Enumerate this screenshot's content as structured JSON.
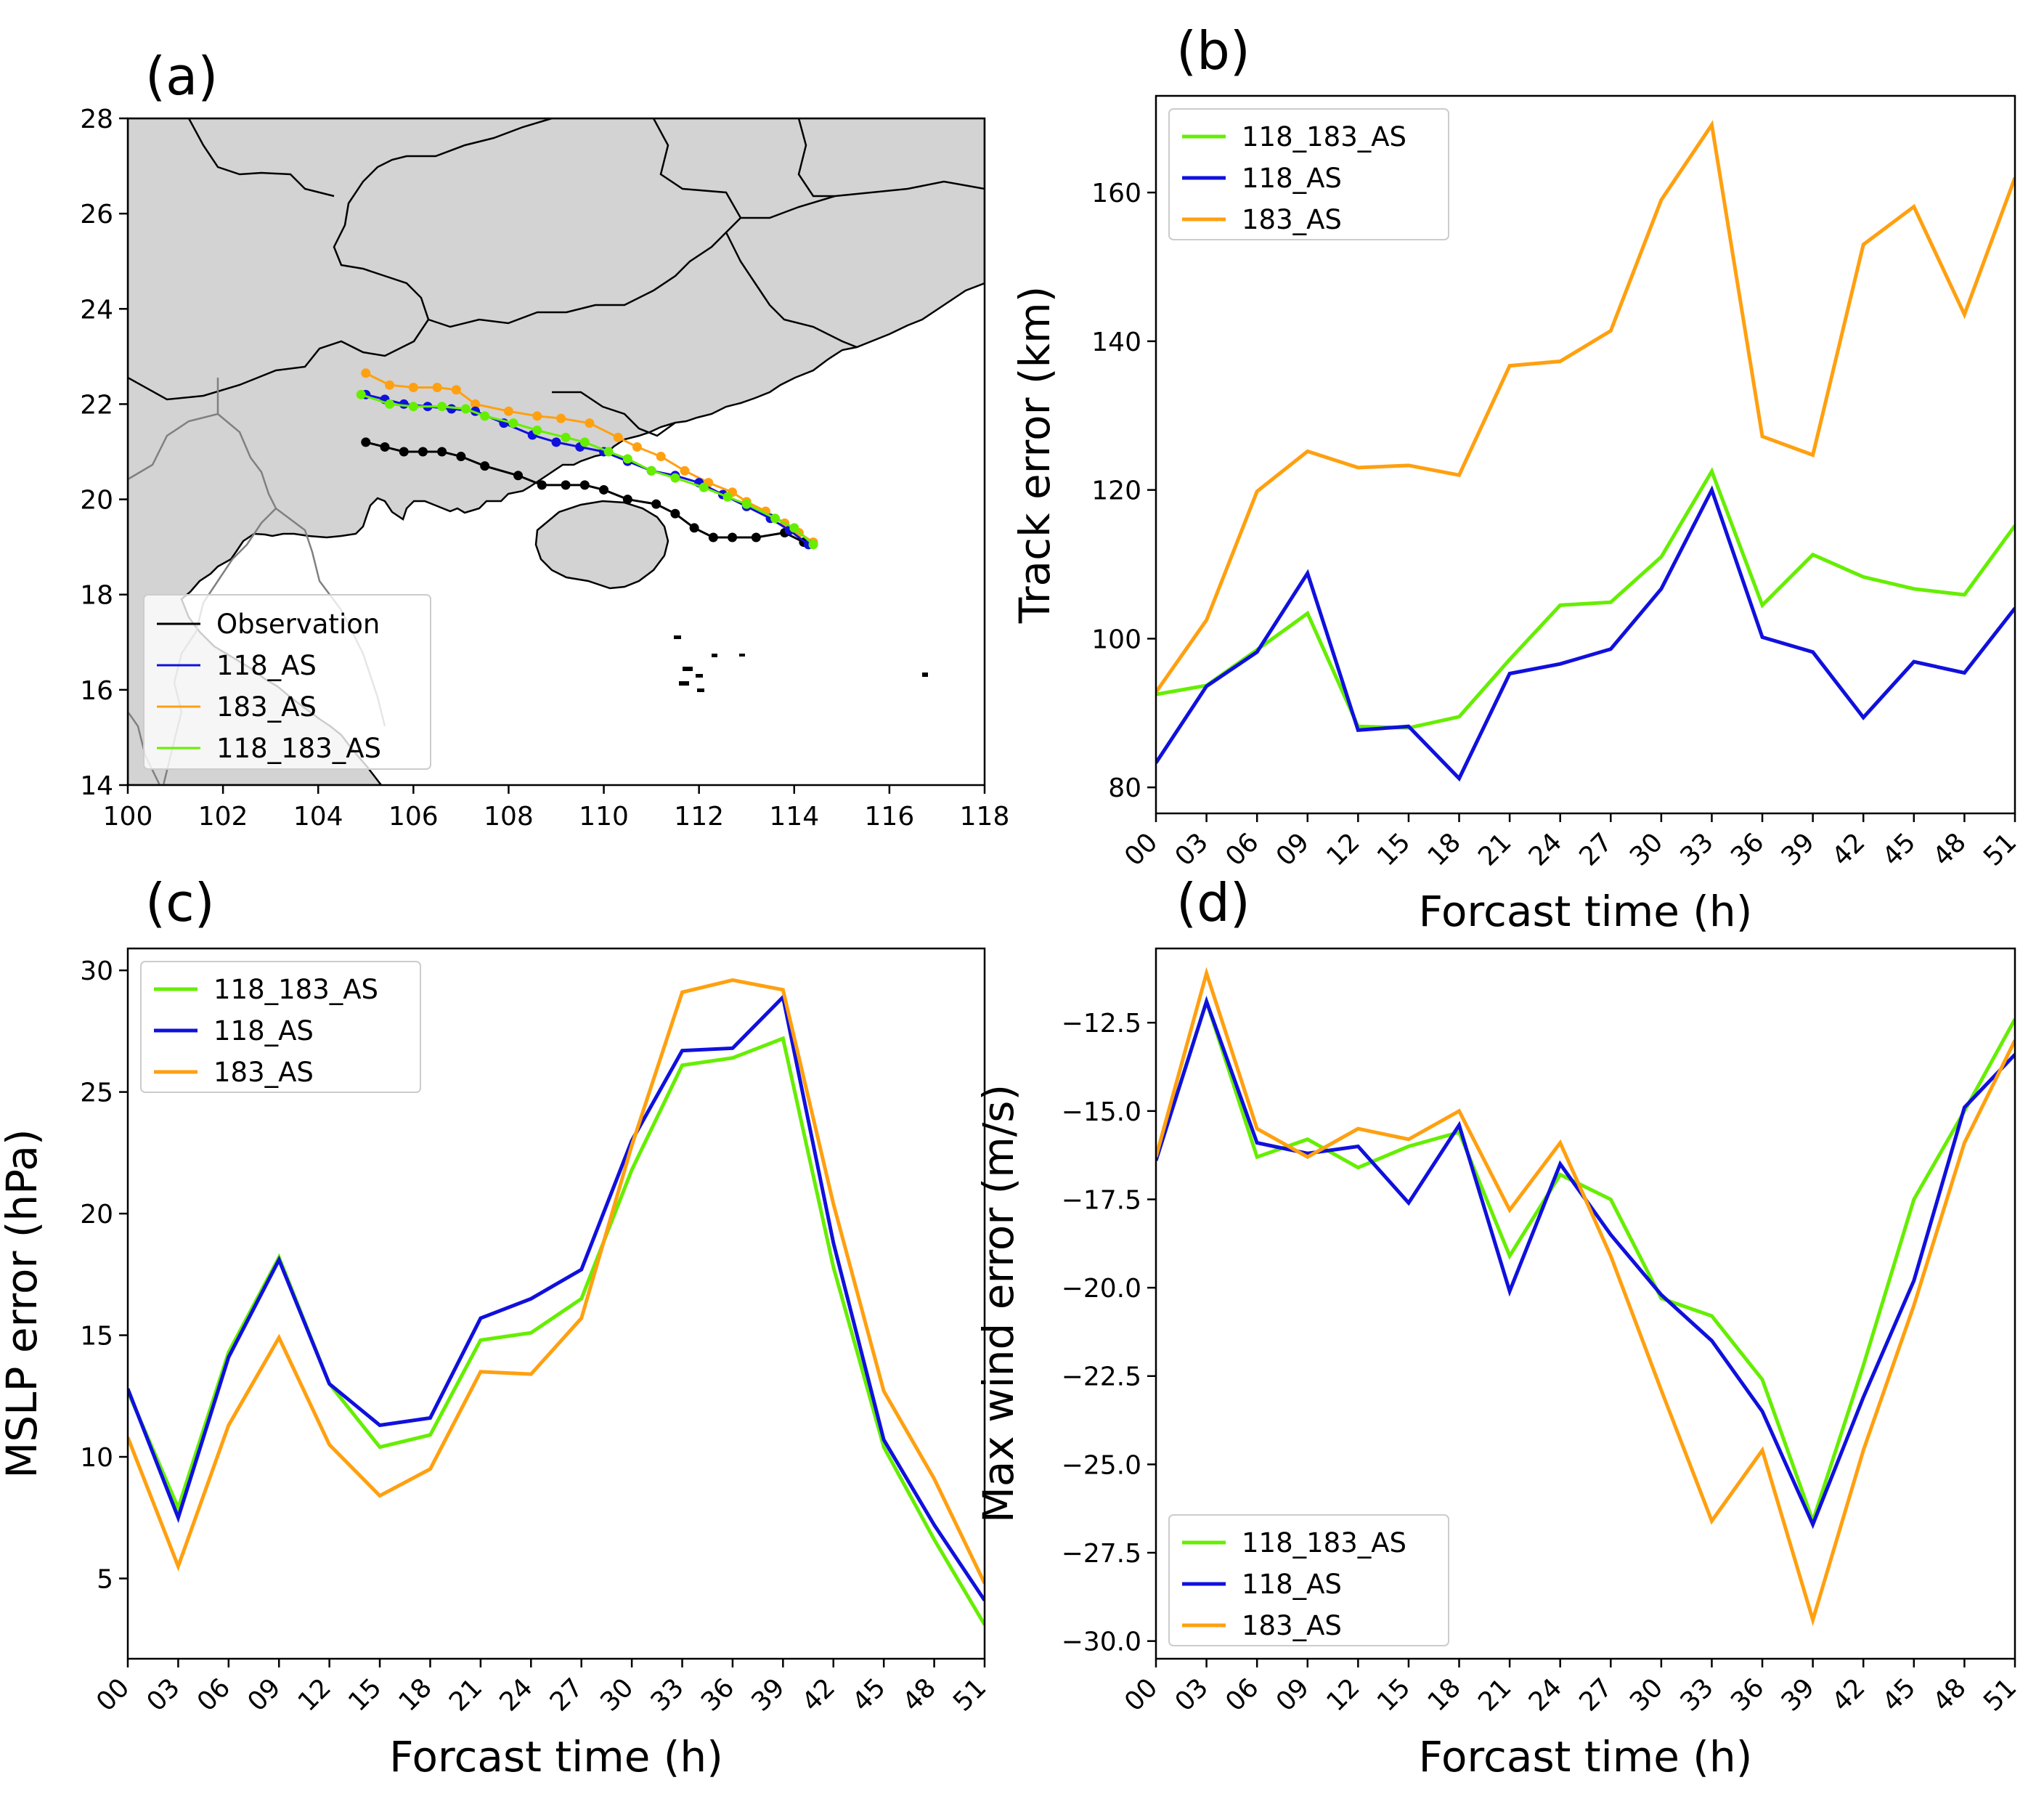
{
  "figure": {
    "panel_labels": [
      "(a)",
      "(b)",
      "(c)",
      "(d)"
    ]
  },
  "colors": {
    "118_183_AS": "#66ee00",
    "118_AS": "#1010dd",
    "183_AS": "#ffa010",
    "Observation": "#000000",
    "land": "#d3d3d3",
    "ocean": "#ffffff",
    "border_black": "#000000",
    "border_gray": "#808080"
  },
  "chart_data": [
    {
      "panel": "(a)",
      "type": "scatter",
      "x_ticks": [
        100,
        102,
        104,
        106,
        108,
        110,
        112,
        114,
        116,
        118
      ],
      "y_ticks": [
        14,
        16,
        18,
        20,
        22,
        24,
        26,
        28
      ],
      "xlim": [
        100,
        118
      ],
      "ylim": [
        14,
        28
      ],
      "legend_position": "lower-left",
      "legend": [
        "Observation",
        "118_AS",
        "183_AS",
        "118_183_AS"
      ],
      "series": [
        {
          "name": "Observation",
          "color": "#000000",
          "points": [
            [
              105.0,
              21.2
            ],
            [
              105.4,
              21.1
            ],
            [
              105.8,
              21.0
            ],
            [
              106.2,
              21.0
            ],
            [
              106.6,
              21.0
            ],
            [
              107.0,
              20.9
            ],
            [
              107.5,
              20.7
            ],
            [
              108.2,
              20.5
            ],
            [
              108.7,
              20.3
            ],
            [
              109.2,
              20.3
            ],
            [
              109.6,
              20.3
            ],
            [
              110.0,
              20.2
            ],
            [
              110.5,
              20.0
            ],
            [
              111.1,
              19.9
            ],
            [
              111.5,
              19.7
            ],
            [
              111.9,
              19.4
            ],
            [
              112.3,
              19.2
            ],
            [
              112.7,
              19.2
            ],
            [
              113.2,
              19.2
            ],
            [
              113.8,
              19.3
            ],
            [
              114.2,
              19.1
            ]
          ]
        },
        {
          "name": "183_AS",
          "color": "#ffa010",
          "points": [
            [
              105.0,
              22.65
            ],
            [
              105.5,
              22.4
            ],
            [
              106.0,
              22.35
            ],
            [
              106.5,
              22.35
            ],
            [
              106.9,
              22.3
            ],
            [
              107.3,
              22.0
            ],
            [
              108.0,
              21.85
            ],
            [
              108.6,
              21.75
            ],
            [
              109.1,
              21.7
            ],
            [
              109.7,
              21.6
            ],
            [
              110.3,
              21.3
            ],
            [
              110.7,
              21.1
            ],
            [
              111.2,
              20.9
            ],
            [
              111.7,
              20.6
            ],
            [
              112.2,
              20.35
            ],
            [
              112.7,
              20.15
            ],
            [
              113.0,
              19.95
            ],
            [
              113.4,
              19.75
            ],
            [
              113.8,
              19.5
            ],
            [
              114.1,
              19.3
            ],
            [
              114.4,
              19.1
            ]
          ]
        },
        {
          "name": "118_AS",
          "color": "#1010dd",
          "points": [
            [
              105.0,
              22.2
            ],
            [
              105.4,
              22.1
            ],
            [
              105.8,
              22.0
            ],
            [
              106.3,
              21.95
            ],
            [
              106.8,
              21.9
            ],
            [
              107.3,
              21.85
            ],
            [
              107.9,
              21.6
            ],
            [
              108.5,
              21.35
            ],
            [
              109.0,
              21.2
            ],
            [
              109.5,
              21.1
            ],
            [
              110.0,
              21.0
            ],
            [
              110.5,
              20.8
            ],
            [
              111.0,
              20.6
            ],
            [
              111.5,
              20.5
            ],
            [
              112.0,
              20.35
            ],
            [
              112.5,
              20.1
            ],
            [
              113.0,
              19.85
            ],
            [
              113.5,
              19.6
            ],
            [
              113.9,
              19.35
            ],
            [
              114.3,
              19.05
            ]
          ]
        },
        {
          "name": "118_183_AS",
          "color": "#66ee00",
          "points": [
            [
              104.9,
              22.2
            ],
            [
              105.5,
              22.0
            ],
            [
              106.0,
              21.95
            ],
            [
              106.6,
              21.95
            ],
            [
              107.1,
              21.9
            ],
            [
              107.5,
              21.75
            ],
            [
              108.1,
              21.6
            ],
            [
              108.6,
              21.45
            ],
            [
              109.2,
              21.3
            ],
            [
              109.6,
              21.2
            ],
            [
              110.1,
              21.0
            ],
            [
              110.5,
              20.85
            ],
            [
              111.0,
              20.6
            ],
            [
              111.5,
              20.45
            ],
            [
              112.1,
              20.25
            ],
            [
              112.6,
              20.05
            ],
            [
              113.0,
              19.9
            ],
            [
              113.6,
              19.6
            ],
            [
              114.0,
              19.4
            ],
            [
              114.4,
              19.05
            ]
          ]
        }
      ]
    },
    {
      "panel": "(b)",
      "type": "line",
      "x": [
        "00",
        "03",
        "06",
        "09",
        "12",
        "15",
        "18",
        "21",
        "24",
        "27",
        "30",
        "33",
        "36",
        "39",
        "42",
        "45",
        "48",
        "51"
      ],
      "xlabel": "Forcast time (h)",
      "ylabel": "Track error (km)",
      "ylim": [
        76.5,
        173
      ],
      "y_ticks": [
        80,
        100,
        120,
        140,
        160
      ],
      "legend_position": "upper-left",
      "legend": [
        "118_183_AS",
        "118_AS",
        "183_AS"
      ],
      "series": [
        {
          "name": "118_183_AS",
          "color": "#66ee00",
          "values": [
            92.5,
            93.7,
            98.5,
            103.4,
            88.2,
            88.0,
            89.5,
            97.2,
            104.5,
            104.9,
            111.0,
            122.5,
            104.5,
            111.3,
            108.3,
            106.7,
            105.9,
            115.2
          ]
        },
        {
          "name": "118_AS",
          "color": "#1010dd",
          "values": [
            83.3,
            93.6,
            98.2,
            108.8,
            87.7,
            88.2,
            81.2,
            95.3,
            96.6,
            98.6,
            106.7,
            120.0,
            100.2,
            98.2,
            89.4,
            96.9,
            95.4,
            104.1
          ]
        },
        {
          "name": "183_AS",
          "color": "#ffa010",
          "values": [
            92.8,
            102.5,
            119.8,
            125.2,
            123.0,
            123.3,
            122.0,
            136.7,
            137.3,
            141.4,
            159.0,
            169.1,
            127.2,
            124.7,
            153.0,
            158.1,
            143.6,
            162.0
          ]
        }
      ]
    },
    {
      "panel": "(c)",
      "type": "line",
      "x": [
        "00",
        "03",
        "06",
        "09",
        "12",
        "15",
        "18",
        "21",
        "24",
        "27",
        "30",
        "33",
        "36",
        "39",
        "42",
        "45",
        "48",
        "51"
      ],
      "xlabel": "Forcast time (h)",
      "ylabel": "MSLP error (hPa)",
      "ylim": [
        1.7,
        30.9
      ],
      "y_ticks": [
        5,
        10,
        15,
        20,
        25,
        30
      ],
      "legend_position": "upper-left",
      "legend": [
        "118_183_AS",
        "118_AS",
        "183_AS"
      ],
      "series": [
        {
          "name": "118_183_AS",
          "color": "#66ee00",
          "values": [
            12.7,
            7.9,
            14.3,
            18.2,
            13.0,
            10.4,
            10.9,
            14.8,
            15.1,
            16.5,
            21.8,
            26.1,
            26.4,
            27.2,
            17.8,
            10.4,
            6.6,
            3.1
          ]
        },
        {
          "name": "118_AS",
          "color": "#1010dd",
          "values": [
            12.8,
            7.5,
            14.1,
            18.1,
            13.0,
            11.3,
            11.6,
            15.7,
            16.5,
            17.7,
            23.0,
            26.7,
            26.8,
            28.9,
            18.8,
            10.7,
            7.2,
            4.1
          ]
        },
        {
          "name": "183_AS",
          "color": "#ffa010",
          "values": [
            10.8,
            5.5,
            11.3,
            14.9,
            10.5,
            8.4,
            9.5,
            13.5,
            13.4,
            15.7,
            22.8,
            29.1,
            29.6,
            29.2,
            20.4,
            12.7,
            9.1,
            4.8
          ]
        }
      ]
    },
    {
      "panel": "(d)",
      "type": "line",
      "x": [
        "00",
        "03",
        "06",
        "09",
        "12",
        "15",
        "18",
        "21",
        "24",
        "27",
        "30",
        "33",
        "36",
        "39",
        "42",
        "45",
        "48",
        "51"
      ],
      "xlabel": "Forcast time (h)",
      "ylabel": "Max wind error (m/s)",
      "ylim": [
        -30.5,
        -10.4
      ],
      "y_ticks": [
        -12.5,
        -15.0,
        -17.5,
        -20.0,
        -22.5,
        -25.0,
        -27.5,
        -30.0
      ],
      "y_tick_labels": [
        "−12.5",
        "−15.0",
        "−17.5",
        "−20.0",
        "−22.5",
        "−25.0",
        "−27.5",
        "−30.0"
      ],
      "legend_position": "lower-left",
      "legend": [
        "118_183_AS",
        "118_AS",
        "183_AS"
      ],
      "series": [
        {
          "name": "118_183_AS",
          "color": "#66ee00",
          "values": [
            -16.4,
            -11.9,
            -16.3,
            -15.8,
            -16.6,
            -16.0,
            -15.6,
            -19.1,
            -16.8,
            -17.5,
            -20.3,
            -20.8,
            -22.6,
            -26.6,
            -22.2,
            -17.5,
            -15.0,
            -12.4
          ]
        },
        {
          "name": "118_AS",
          "color": "#1010dd",
          "values": [
            -16.4,
            -11.9,
            -15.9,
            -16.2,
            -16.0,
            -17.6,
            -15.4,
            -20.1,
            -16.5,
            -18.5,
            -20.2,
            -21.5,
            -23.5,
            -26.7,
            -23.1,
            -19.8,
            -14.9,
            -13.4
          ]
        },
        {
          "name": "183_AS",
          "color": "#ffa010",
          "values": [
            -16.3,
            -11.1,
            -15.5,
            -16.3,
            -15.5,
            -15.8,
            -15.0,
            -17.8,
            -15.9,
            -19.1,
            -22.9,
            -26.6,
            -24.6,
            -29.4,
            -24.6,
            -20.5,
            -15.9,
            -13.0
          ]
        }
      ]
    }
  ]
}
